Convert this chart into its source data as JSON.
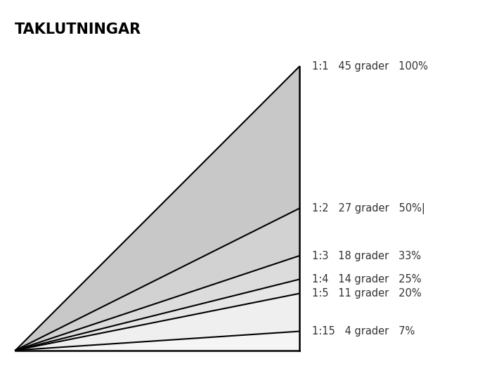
{
  "title": "TAKLUTNINGAR",
  "title_fontsize": 15,
  "title_fontweight": "bold",
  "background_color": "#ffffff",
  "slopes": [
    {
      "ratio": "1:1",
      "degrees": "45 grader",
      "percent": "100%",
      "rise": 1.0
    },
    {
      "ratio": "1:2",
      "degrees": "27 grader",
      "percent": "50%|",
      "rise": 0.5
    },
    {
      "ratio": "1:3",
      "degrees": "18 grader",
      "percent": "33%",
      "rise": 0.333
    },
    {
      "ratio": "1:4",
      "degrees": "14 grader",
      "percent": "25%",
      "rise": 0.25
    },
    {
      "ratio": "1:5",
      "degrees": "11 grader",
      "percent": "20%",
      "rise": 0.2
    },
    {
      "ratio": "1:15",
      "degrees": "4 grader",
      "percent": "7%",
      "rise": 0.0667
    }
  ],
  "fill_colors": [
    "#c8c8c8",
    "#d2d2d2",
    "#dcdcdc",
    "#e6e6e6",
    "#efefef",
    "#f5f5f5"
  ],
  "line_color": "#000000",
  "line_width": 1.5,
  "border_color": "#000000",
  "border_width": 1.8,
  "label_color": "#333333",
  "label_fontsize": 10.5
}
